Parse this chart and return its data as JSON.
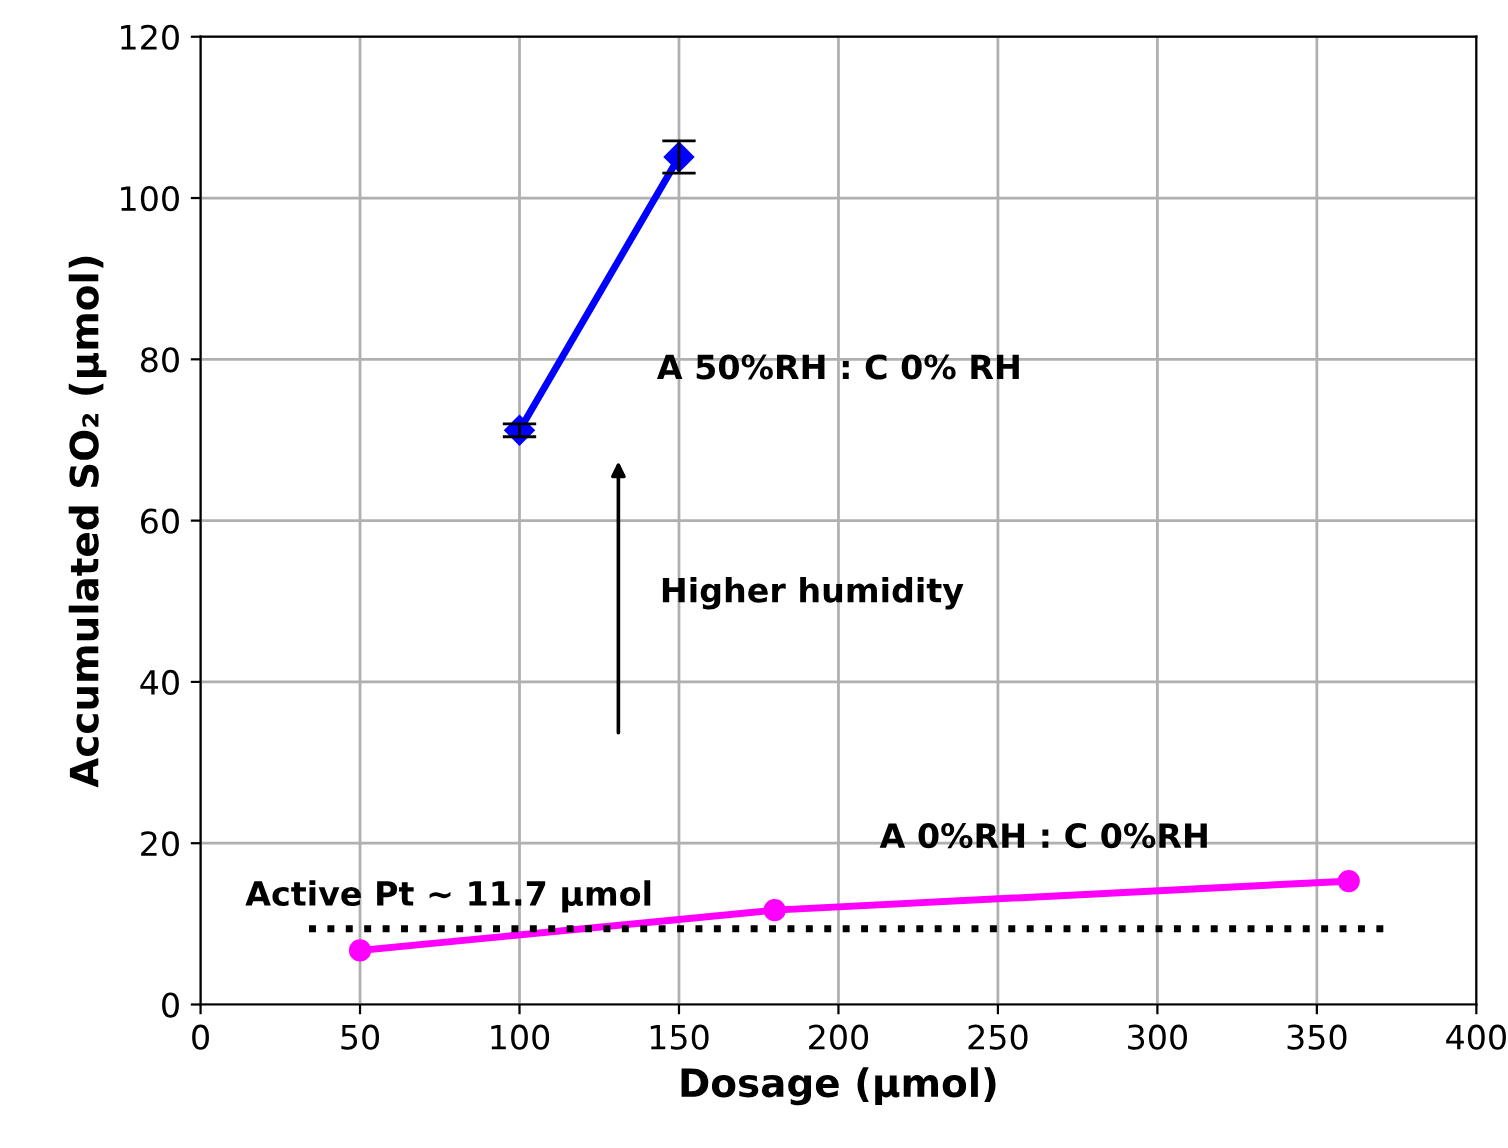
{
  "chart_data": {
    "type": "line",
    "xlabel": "Dosage (µmol)",
    "ylabel": "Accumulated SO₂ (µmol)",
    "xlim": [
      0,
      400
    ],
    "ylim": [
      0,
      120
    ],
    "xticks": [
      0,
      50,
      100,
      150,
      200,
      250,
      300,
      350,
      400
    ],
    "yticks": [
      0,
      20,
      40,
      60,
      80,
      100,
      120
    ],
    "grid": true,
    "legend": false,
    "series": [
      {
        "name": "A 50%RH : C 0% RH",
        "color": "#0000ff",
        "marker": "diamond",
        "x": [
          100,
          150
        ],
        "values": [
          71.2,
          105.1
        ],
        "errors": [
          0.8,
          2
        ]
      },
      {
        "name": "A 0%RH : C 0%RH",
        "color": "#ff00ff",
        "marker": "circle",
        "x": [
          50,
          180,
          360
        ],
        "values": [
          6.7,
          11.7,
          15.3
        ]
      }
    ],
    "ref_lines": [
      {
        "axis": "y",
        "value": 9.4,
        "label": "Active Pt ~ 11.7 µmol",
        "color": "#000000",
        "line_style": "dotted"
      }
    ],
    "annotations": [
      "Higher humidity"
    ]
  }
}
